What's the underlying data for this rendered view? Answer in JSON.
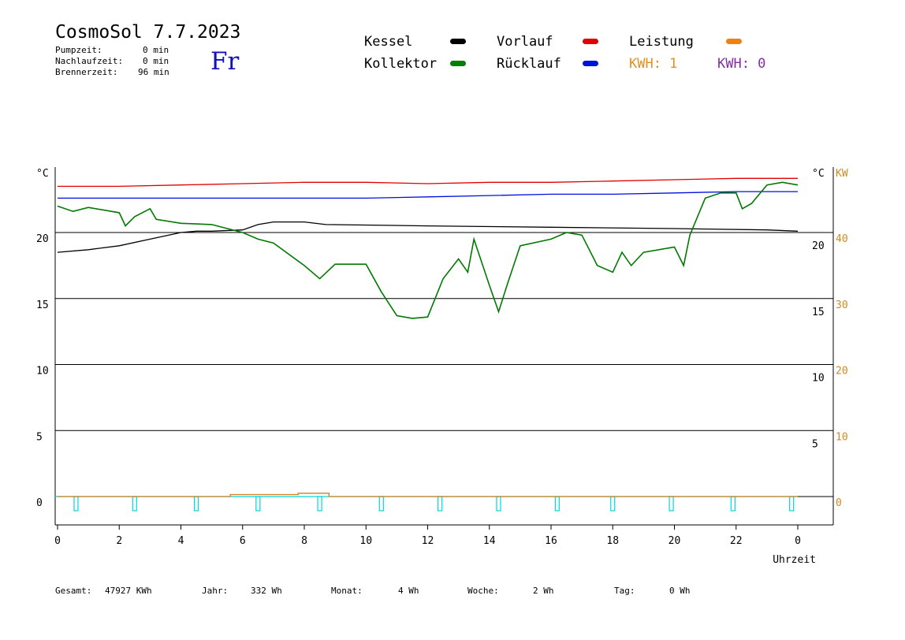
{
  "header": {
    "title": "CosmoSol 7.7.2023",
    "day": "Fr",
    "stats": [
      {
        "label": "Pumpzeit:",
        "value": "0 min"
      },
      {
        "label": "Nachlaufzeit:",
        "value": "0 min"
      },
      {
        "label": "Brennerzeit:",
        "value": "96 min"
      }
    ]
  },
  "legend": {
    "items": [
      {
        "label": "Kessel",
        "color": "#000000"
      },
      {
        "label": "Vorlauf",
        "color": "#e00000"
      },
      {
        "label": "Leistung",
        "color": "#f08010"
      },
      {
        "label": "Kollektor",
        "color": "#008000"
      },
      {
        "label": "Rücklauf",
        "color": "#0010e0"
      }
    ],
    "kwh_left": {
      "text": "KWH: 1",
      "color": "#e09020"
    },
    "kwh_right": {
      "text": "KWH: 0",
      "color": "#8030a0"
    }
  },
  "footer": [
    {
      "label": "Gesamt:",
      "value": "47927 KWh"
    },
    {
      "label": "Jahr:",
      "value": "332 Wh"
    },
    {
      "label": "Monat:",
      "value": "4 Wh"
    },
    {
      "label": "Woche:",
      "value": "2 Wh"
    },
    {
      "label": "Tag:",
      "value": "0 Wh"
    }
  ],
  "chart_data": {
    "type": "line",
    "x_label": "Uhrzeit",
    "x_range": [
      0,
      24
    ],
    "x_ticks": [
      "0",
      "2",
      "4",
      "6",
      "8",
      "10",
      "12",
      "14",
      "16",
      "18",
      "20",
      "22",
      "0"
    ],
    "y_left_unit": "°C",
    "y_right_unit": "°C",
    "y_kw_unit": "KW",
    "y_range": [
      -2,
      25
    ],
    "y_ticks_left": [
      "20",
      "15",
      "10",
      "5",
      "0"
    ],
    "y_ticks_right": [
      "20",
      "15",
      "10",
      "5"
    ],
    "y_ticks_kw": [
      "40",
      "30",
      "20",
      "10",
      "0"
    ],
    "grid": true,
    "colors": {
      "kessel": "#000000",
      "vorlauf": "#e00000",
      "ruecklauf": "#0010e0",
      "kollektor": "#007a00",
      "leistung": "#d08020",
      "pumpe": "#00d8d8",
      "kw_axis": "#d08a20"
    },
    "series": [
      {
        "name": "Vorlauf",
        "x": [
          0,
          2,
          4,
          6,
          8,
          10,
          12,
          14,
          16,
          18,
          20,
          22,
          24
        ],
        "values": [
          23.5,
          23.5,
          23.6,
          23.7,
          23.8,
          23.8,
          23.7,
          23.8,
          23.8,
          23.9,
          24.0,
          24.1,
          24.1
        ]
      },
      {
        "name": "Rücklauf",
        "x": [
          0,
          2,
          4,
          6,
          8,
          10,
          12,
          14,
          16,
          18,
          20,
          22,
          24
        ],
        "values": [
          22.6,
          22.6,
          22.6,
          22.6,
          22.6,
          22.6,
          22.7,
          22.8,
          22.9,
          22.9,
          23.0,
          23.1,
          23.1
        ]
      },
      {
        "name": "Kessel",
        "x": [
          0,
          1,
          2,
          3,
          4,
          4.5,
          5,
          6,
          6.5,
          7,
          8,
          8.7,
          12,
          16,
          20,
          23,
          24
        ],
        "values": [
          18.5,
          18.7,
          19.0,
          19.5,
          20.0,
          20.1,
          20.1,
          20.2,
          20.6,
          20.8,
          20.8,
          20.6,
          20.5,
          20.4,
          20.3,
          20.2,
          20.1
        ]
      },
      {
        "name": "Kollektor",
        "x": [
          0,
          0.5,
          1,
          2,
          2.2,
          2.5,
          3,
          3.2,
          4,
          5,
          6,
          6.5,
          7,
          8,
          8.5,
          9,
          10,
          10.5,
          11,
          11.5,
          12,
          12.5,
          13,
          13.3,
          13.5,
          14,
          14.3,
          14.6,
          15,
          16,
          16.5,
          17,
          17.5,
          18,
          18.3,
          18.6,
          19,
          20,
          20.3,
          20.5,
          21,
          21.5,
          22,
          22.2,
          22.5,
          23,
          23.5,
          24
        ],
        "values": [
          22.0,
          21.6,
          21.9,
          21.5,
          20.5,
          21.2,
          21.8,
          21.0,
          20.7,
          20.6,
          20.0,
          19.5,
          19.2,
          17.5,
          16.5,
          17.6,
          17.6,
          15.5,
          13.7,
          13.5,
          13.6,
          16.5,
          18.0,
          17.0,
          19.5,
          16.0,
          14.0,
          16.2,
          19.0,
          19.5,
          20.0,
          19.8,
          17.5,
          17.0,
          18.5,
          17.5,
          18.5,
          18.9,
          17.5,
          19.8,
          22.6,
          23.0,
          23.0,
          21.8,
          22.2,
          23.6,
          23.8,
          23.6
        ]
      },
      {
        "name": "Leistung",
        "x": [
          0,
          5.6,
          5.6,
          7.8,
          7.8,
          8.8,
          8.8,
          24
        ],
        "values": [
          0.0,
          0.0,
          0.15,
          0.15,
          0.25,
          0.25,
          0.0,
          0.0
        ]
      }
    ],
    "pump_pulses_x": [
      0.6,
      2.5,
      4.5,
      6.5,
      8.5,
      10.5,
      12.4,
      14.3,
      16.2,
      18.0,
      19.9,
      21.9,
      23.8
    ]
  }
}
